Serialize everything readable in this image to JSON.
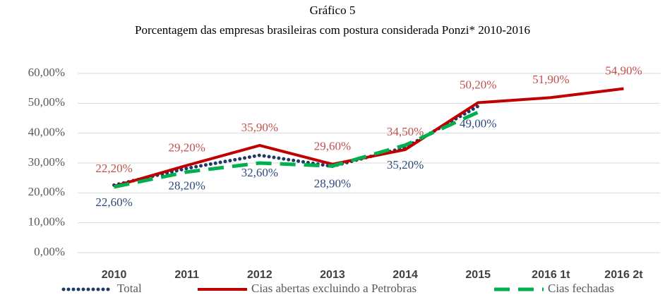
{
  "chart_data": {
    "type": "line",
    "title": "Gráfico 5",
    "subtitle": "Porcentagem das empresas brasileiras com postura considerada Ponzi* 2010-2016",
    "categories": [
      "2010",
      "2011",
      "2012",
      "2013",
      "2014",
      "2015",
      "2016 1t",
      "2016 2t"
    ],
    "series": [
      {
        "name": "Total",
        "color": "#1f3864",
        "style": "dotted",
        "values": [
          22.6,
          28.2,
          32.6,
          28.9,
          35.2,
          49.0,
          null,
          null
        ],
        "value_labels": [
          "22,60%",
          "28,20%",
          "32,60%",
          "28,90%",
          "35,20%",
          "49,00%",
          null,
          null
        ],
        "label_color": "#2e4a7d",
        "label_position": "below"
      },
      {
        "name": "Cias abertas excluindo a Petrobras",
        "color": "#c00000",
        "style": "solid",
        "values": [
          22.2,
          29.2,
          35.9,
          29.6,
          34.5,
          50.2,
          51.9,
          54.9
        ],
        "value_labels": [
          "22,20%",
          "29,20%",
          "35,90%",
          "29,60%",
          "34,50%",
          "50,20%",
          "51,90%",
          "54,90%"
        ],
        "label_color": "#c0504d",
        "label_position": "above"
      },
      {
        "name": "Cias fechadas",
        "color": "#00b050",
        "style": "dashed",
        "values": [
          22.0,
          27.0,
          30.0,
          29.0,
          36.0,
          47.0,
          null,
          null
        ]
      }
    ],
    "ylim": [
      0,
      60
    ],
    "yticks": [
      {
        "value": 0,
        "label": "0,00%"
      },
      {
        "value": 10,
        "label": "10,00%"
      },
      {
        "value": 20,
        "label": "20,00%"
      },
      {
        "value": 30,
        "label": "30,00%"
      },
      {
        "value": 40,
        "label": "40,00%"
      },
      {
        "value": 50,
        "label": "50,00%"
      },
      {
        "value": 60,
        "label": "60,00%"
      }
    ],
    "grid": true,
    "legend": "bottom"
  }
}
